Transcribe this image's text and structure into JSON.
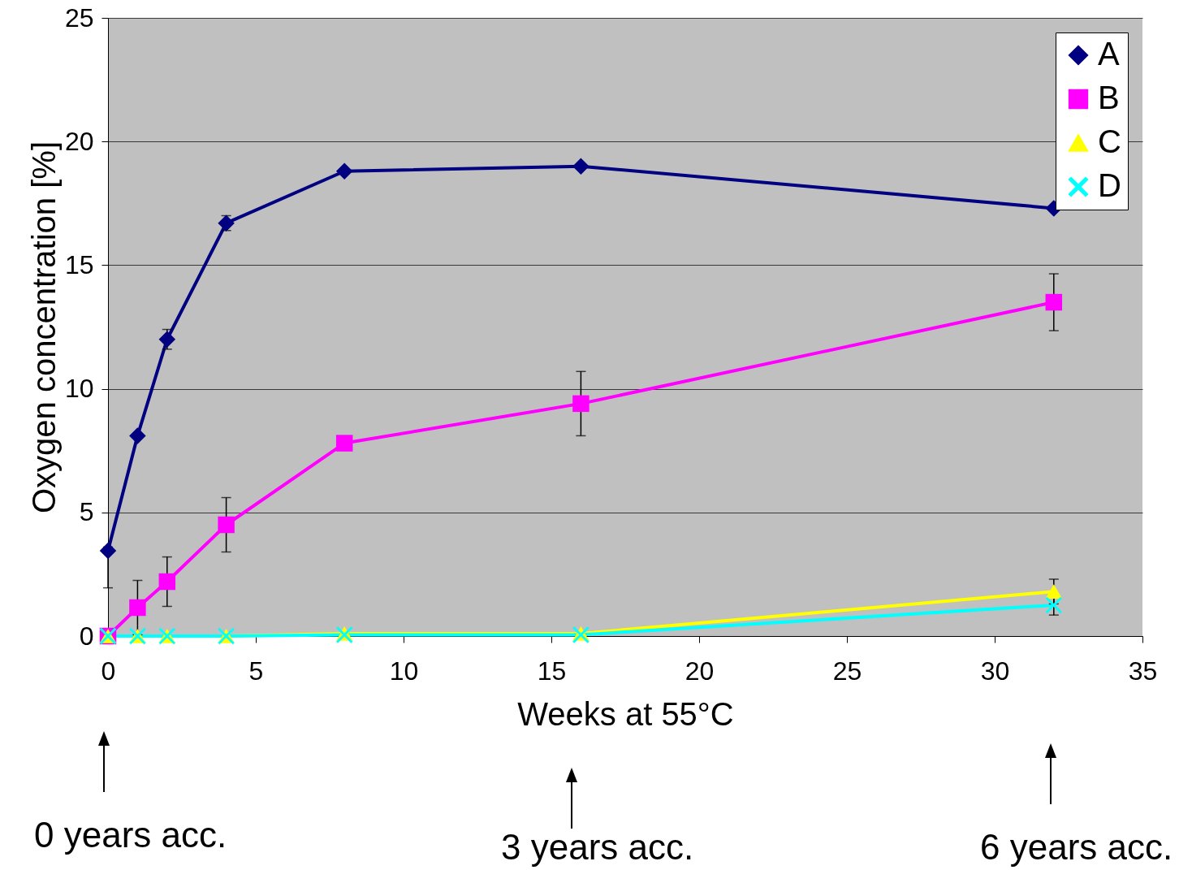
{
  "chart_data": {
    "type": "line",
    "xlabel": "Weeks at 55°C",
    "ylabel": "Oxygen concentration [%]",
    "x": [
      0,
      1,
      2,
      4,
      8,
      16,
      32
    ],
    "series": [
      {
        "name": "A",
        "color": "#000080",
        "marker": "diamond",
        "values": [
          3.45,
          8.1,
          12.0,
          16.7,
          18.8,
          19.0,
          17.3
        ],
        "errors": [
          [
            1.95,
            3.6
          ],
          null,
          0.4,
          0.3,
          null,
          null,
          null
        ]
      },
      {
        "name": "B",
        "color": "#ff00ff",
        "marker": "square",
        "values": [
          0,
          1.15,
          2.2,
          4.5,
          7.8,
          9.4,
          13.5
        ],
        "errors": [
          null,
          1.1,
          1.0,
          1.1,
          null,
          1.3,
          1.15
        ]
      },
      {
        "name": "C",
        "color": "#ffff00",
        "marker": "triangle",
        "values": [
          0,
          0,
          0,
          0,
          0.1,
          0.1,
          1.8
        ],
        "errors": [
          null,
          null,
          null,
          null,
          null,
          null,
          0.5
        ]
      },
      {
        "name": "D",
        "color": "#00ffff",
        "marker": "cross",
        "values": [
          0,
          0,
          0,
          0,
          0.05,
          0.05,
          1.25
        ],
        "errors": [
          null,
          null,
          null,
          null,
          null,
          null,
          0.4
        ]
      }
    ],
    "xlim": [
      0,
      35
    ],
    "xticks": [
      0,
      5,
      10,
      15,
      20,
      25,
      30,
      35
    ],
    "ylim": [
      0,
      25
    ],
    "yticks": [
      0,
      5,
      10,
      15,
      20,
      25
    ],
    "grid": "y",
    "legend": "top right",
    "line_style": "solid",
    "annotations": [
      "0 years acc.",
      "3 years acc.",
      "6 years acc."
    ]
  }
}
